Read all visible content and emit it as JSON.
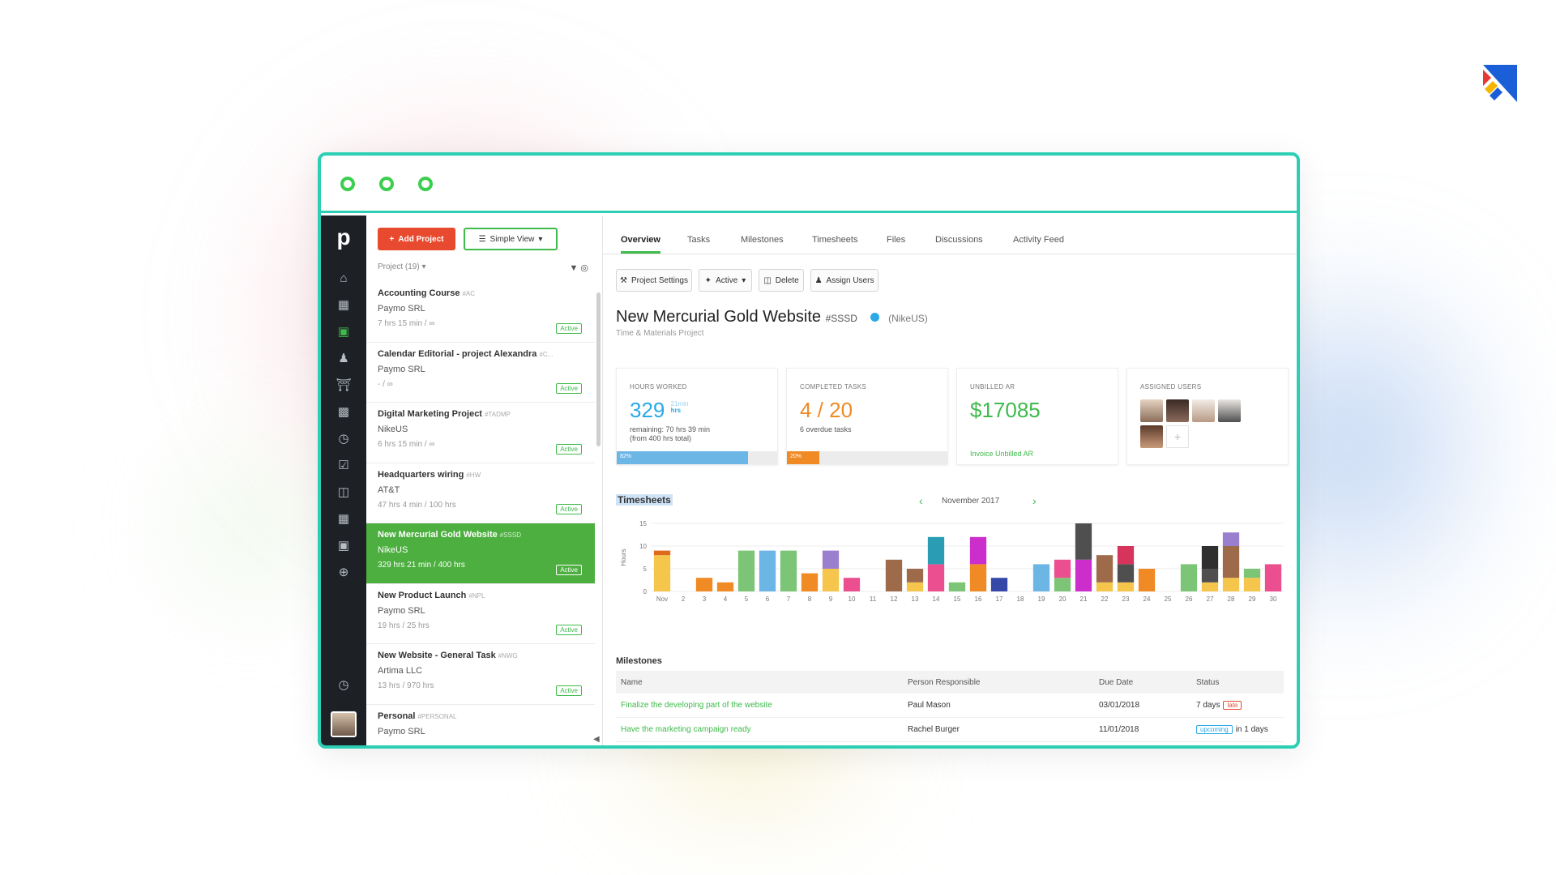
{
  "colors": {
    "frame": "#2ccfb4",
    "window_dot": "#3cce4e",
    "brand_green": "#3fba4c",
    "add_red": "#e74a2e",
    "hours_blue": "#2aa9e6",
    "tasks_orange": "#f08a24",
    "ar_green": "#3fba4c"
  },
  "rail": {
    "logo": "p",
    "icons": [
      "home-icon",
      "briefcase-icon",
      "folder-icon",
      "user-icon",
      "bank-icon",
      "bar-chart-icon",
      "clock-icon",
      "checkbox-icon",
      "documents-icon",
      "calendar-icon",
      "inbox-icon",
      "plus-circle-icon",
      "timer-icon"
    ]
  },
  "list": {
    "add_button": "Add Project",
    "view_button": "Simple View",
    "header": "Project (19) ▾",
    "projects": [
      {
        "name": "Accounting Course",
        "code": "#AC",
        "client": "Paymo SRL",
        "hours": "7 hrs 15 min / ∞",
        "status": "Active"
      },
      {
        "name": "Calendar Editorial - project Alexandra",
        "code": "#C...",
        "client": "Paymo SRL",
        "hours": "- / ∞",
        "status": "Active"
      },
      {
        "name": "Digital Marketing Project",
        "code": "#TADMP",
        "client": "NikeUS",
        "hours": "6 hrs 15 min / ∞",
        "status": "Active"
      },
      {
        "name": "Headquarters wiring",
        "code": "#HW",
        "client": "AT&T",
        "hours": "47 hrs 4 min / 100 hrs",
        "status": "Active"
      },
      {
        "name": "New Mercurial Gold Website",
        "code": "#SSSD",
        "client": "NikeUS",
        "hours": "329 hrs 21 min / 400 hrs",
        "status": "Active"
      },
      {
        "name": "New Product Launch",
        "code": "#NPL",
        "client": "Paymo SRL",
        "hours": "19 hrs / 25 hrs",
        "status": "Active"
      },
      {
        "name": "New Website - General Task",
        "code": "#NWG",
        "client": "Artima LLC",
        "hours": "13 hrs / 970 hrs",
        "status": "Active"
      },
      {
        "name": "Personal",
        "code": "#PERSONAL",
        "client": "Paymo SRL",
        "hours": "",
        "status": ""
      }
    ]
  },
  "tabs": [
    "Overview",
    "Tasks",
    "Milestones",
    "Timesheets",
    "Files",
    "Discussions",
    "Activity Feed"
  ],
  "actions": {
    "settings": "Project Settings",
    "active": "Active",
    "delete": "Delete",
    "assign": "Assign Users"
  },
  "project": {
    "title": "New Mercurial Gold Website",
    "code": "#SSSD",
    "client": "(NikeUS)",
    "type": "Time & Materials Project"
  },
  "cards": {
    "hours": {
      "label": "HOURS WORKED",
      "value": "329",
      "unit_top": "21min",
      "unit_bottom": "hrs",
      "sub1": "remaining: 70 hrs 39 min",
      "sub2": "(from 400 hrs total)",
      "progress_percent": 82,
      "progress_label": "82%"
    },
    "tasks": {
      "label": "COMPLETED TASKS",
      "value": "4 / 20",
      "sub": "6 overdue tasks",
      "progress_percent": 20,
      "progress_label": "20%"
    },
    "ar": {
      "label": "UNBILLED AR",
      "value": "$17085",
      "link": "Invoice Unbilled AR"
    },
    "users": {
      "label": "ASSIGNED USERS",
      "add": "+"
    }
  },
  "timesheets": {
    "title": "Timesheets",
    "month": "November 2017",
    "prev": "‹",
    "next": "›"
  },
  "chart_data": {
    "type": "bar",
    "stacked": true,
    "ylabel": "Hours",
    "ylim": [
      0,
      15
    ],
    "yticks": [
      0,
      5,
      10,
      15
    ],
    "categories": [
      "Nov",
      "2",
      "3",
      "4",
      "5",
      "6",
      "7",
      "8",
      "9",
      "10",
      "11",
      "12",
      "13",
      "14",
      "15",
      "16",
      "17",
      "18",
      "19",
      "20",
      "21",
      "22",
      "23",
      "24",
      "25",
      "26",
      "27",
      "28",
      "29",
      "30"
    ],
    "series": [
      {
        "color": "#f5c64b",
        "values": [
          8,
          0,
          0,
          0,
          0,
          0,
          0,
          0,
          5,
          0,
          0,
          0,
          2,
          0,
          0,
          0,
          0,
          0,
          0,
          0,
          0,
          2,
          2,
          0,
          0,
          0,
          2,
          3,
          3,
          0
        ]
      },
      {
        "color": "#f08a24",
        "values": [
          0,
          0,
          3,
          2,
          0,
          0,
          0,
          4,
          0,
          0,
          0,
          0,
          0,
          0,
          0,
          6,
          0,
          0,
          0,
          0,
          0,
          0,
          0,
          5,
          0,
          0,
          0,
          0,
          0,
          0
        ]
      },
      {
        "color": "#7cc576",
        "values": [
          0,
          0,
          0,
          0,
          9,
          0,
          9,
          0,
          0,
          0,
          0,
          0,
          0,
          0,
          2,
          0,
          0,
          0,
          0,
          3,
          0,
          0,
          0,
          0,
          0,
          6,
          0,
          0,
          2,
          0
        ]
      },
      {
        "color": "#6cb6e6",
        "values": [
          0,
          0,
          0,
          0,
          0,
          9,
          0,
          0,
          0,
          0,
          0,
          0,
          0,
          0,
          0,
          0,
          0,
          0,
          6,
          0,
          0,
          0,
          0,
          0,
          0,
          0,
          0,
          0,
          0,
          0
        ]
      },
      {
        "color": "#ec4f8f",
        "values": [
          0,
          0,
          0,
          0,
          0,
          0,
          0,
          0,
          0,
          3,
          0,
          0,
          0,
          6,
          0,
          0,
          0,
          0,
          0,
          4,
          0,
          0,
          0,
          0,
          0,
          0,
          0,
          0,
          0,
          6
        ]
      },
      {
        "color": "#9d6b4a",
        "values": [
          0,
          0,
          0,
          0,
          0,
          0,
          0,
          0,
          0,
          0,
          0,
          7,
          3,
          0,
          0,
          0,
          0,
          0,
          0,
          0,
          0,
          6,
          0,
          0,
          0,
          0,
          0,
          7,
          0,
          0
        ]
      },
      {
        "color": "#9b7fcf",
        "values": [
          0,
          0,
          0,
          0,
          0,
          0,
          0,
          0,
          4,
          0,
          0,
          0,
          0,
          0,
          0,
          0,
          0,
          0,
          0,
          0,
          0,
          0,
          0,
          0,
          0,
          0,
          0,
          3,
          0,
          0
        ]
      },
      {
        "color": "#2a9db5",
        "values": [
          0,
          0,
          0,
          0,
          0,
          0,
          0,
          0,
          0,
          0,
          0,
          0,
          0,
          6,
          0,
          0,
          0,
          0,
          0,
          0,
          0,
          0,
          0,
          0,
          0,
          0,
          0,
          0,
          0,
          0
        ]
      },
      {
        "color": "#cc2ecc",
        "values": [
          0,
          0,
          0,
          0,
          0,
          0,
          0,
          0,
          0,
          0,
          0,
          0,
          0,
          0,
          0,
          6,
          0,
          0,
          0,
          0,
          7,
          0,
          0,
          0,
          0,
          0,
          0,
          0,
          0,
          0
        ]
      },
      {
        "color": "#3548a8",
        "values": [
          0,
          0,
          0,
          0,
          0,
          0,
          0,
          0,
          0,
          0,
          0,
          0,
          0,
          0,
          0,
          0,
          3,
          0,
          0,
          0,
          0,
          0,
          0,
          0,
          0,
          0,
          0,
          0,
          0,
          0
        ]
      },
      {
        "color": "#4f4f4f",
        "values": [
          0,
          0,
          0,
          0,
          0,
          0,
          0,
          0,
          0,
          0,
          0,
          0,
          0,
          0,
          0,
          0,
          0,
          0,
          0,
          0,
          8,
          0,
          4,
          0,
          0,
          0,
          3,
          0,
          0,
          0
        ]
      },
      {
        "color": "#d6345a",
        "values": [
          0,
          0,
          0,
          0,
          0,
          0,
          0,
          0,
          0,
          0,
          0,
          0,
          0,
          0,
          0,
          0,
          0,
          0,
          0,
          0,
          0,
          0,
          4,
          0,
          0,
          0,
          0,
          0,
          0,
          0
        ]
      },
      {
        "color": "#2f2f2f",
        "values": [
          0,
          0,
          0,
          0,
          0,
          0,
          0,
          0,
          0,
          0,
          0,
          0,
          0,
          0,
          0,
          0,
          0,
          0,
          0,
          0,
          0,
          0,
          0,
          0,
          0,
          0,
          5,
          0,
          0,
          0
        ]
      },
      {
        "color": "#e06a1c",
        "values": [
          1,
          0,
          0,
          0,
          0,
          0,
          0,
          0,
          0,
          0,
          0,
          0,
          0,
          0,
          0,
          0,
          0,
          0,
          0,
          0,
          0,
          0,
          0,
          0,
          0,
          0,
          0,
          0,
          0,
          0
        ]
      }
    ]
  },
  "milestones": {
    "title": "Milestones",
    "columns": [
      "Name",
      "Person Responsible",
      "Due Date",
      "Status"
    ],
    "rows": [
      {
        "name": "Finalize the developing part of the website",
        "person": "Paul Mason",
        "due": "03/01/2018",
        "status": "7 days",
        "badge": "late"
      },
      {
        "name": "Have the marketing campaign ready",
        "person": "Rachel Burger",
        "due": "11/01/2018",
        "status": "in 1 days",
        "badge": "upcoming"
      }
    ]
  }
}
